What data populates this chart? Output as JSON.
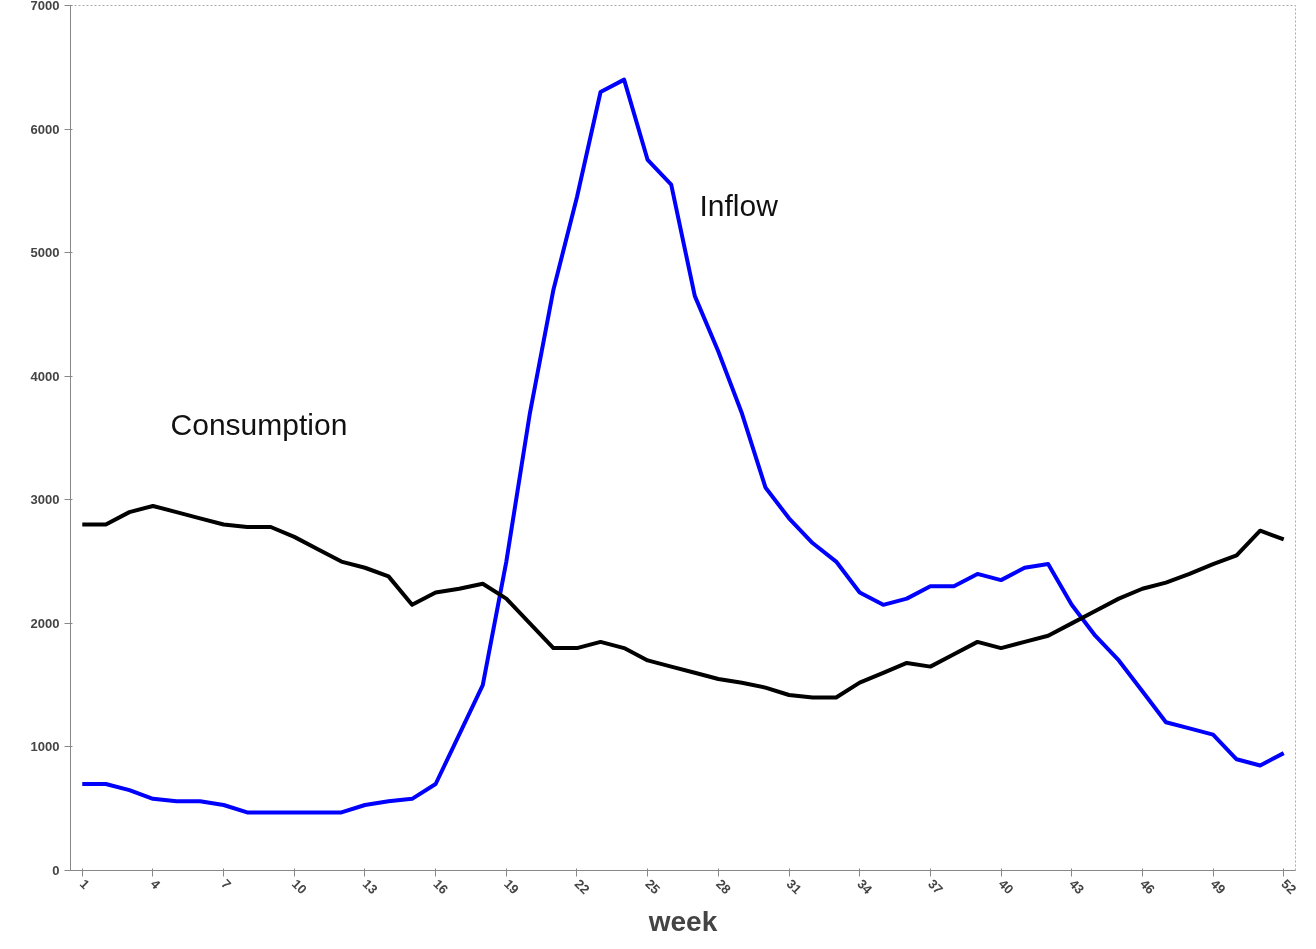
{
  "chart_data": {
    "type": "line",
    "xlabel": "week",
    "x": [
      1,
      2,
      3,
      4,
      5,
      6,
      7,
      8,
      9,
      10,
      11,
      12,
      13,
      14,
      15,
      16,
      17,
      18,
      19,
      20,
      21,
      22,
      23,
      24,
      25,
      26,
      27,
      28,
      29,
      30,
      31,
      32,
      33,
      34,
      35,
      36,
      37,
      38,
      39,
      40,
      41,
      42,
      43,
      44,
      45,
      46,
      47,
      48,
      49,
      50,
      51,
      52
    ],
    "xlim": [
      0.5,
      52.5
    ],
    "xticks": [
      1,
      4,
      7,
      10,
      13,
      16,
      19,
      22,
      25,
      28,
      31,
      34,
      37,
      40,
      43,
      46,
      49,
      52
    ],
    "ylim": [
      0,
      7000
    ],
    "yticks": [
      0,
      1000,
      2000,
      3000,
      4000,
      5000,
      6000,
      7000
    ],
    "grid": false,
    "marker": "none",
    "line_style": "solid",
    "series": [
      {
        "name": "Inflow",
        "color": "#0000ff",
        "values": [
          700,
          700,
          650,
          580,
          560,
          560,
          530,
          470,
          470,
          470,
          470,
          470,
          530,
          560,
          580,
          700,
          1100,
          1500,
          2500,
          3700,
          4700,
          5450,
          6300,
          6400,
          5750,
          5550,
          4650,
          4200,
          3700,
          3100,
          2850,
          2650,
          2500,
          2250,
          2150,
          2200,
          2300,
          2300,
          2400,
          2350,
          2450,
          2480,
          2150,
          1900,
          1700,
          1450,
          1200,
          1150,
          1100,
          900,
          850,
          950
        ]
      },
      {
        "name": "Consumption",
        "color": "#000000",
        "values": [
          2800,
          2800,
          2900,
          2950,
          2900,
          2850,
          2800,
          2780,
          2780,
          2700,
          2600,
          2500,
          2450,
          2380,
          2150,
          2250,
          2280,
          2320,
          2200,
          2000,
          1800,
          1800,
          1850,
          1800,
          1700,
          1650,
          1600,
          1550,
          1520,
          1480,
          1420,
          1400,
          1400,
          1520,
          1600,
          1680,
          1650,
          1750,
          1850,
          1800,
          1850,
          1900,
          2000,
          2100,
          2200,
          2280,
          2330,
          2400,
          2480,
          2550,
          2750,
          2680
        ]
      }
    ]
  }
}
